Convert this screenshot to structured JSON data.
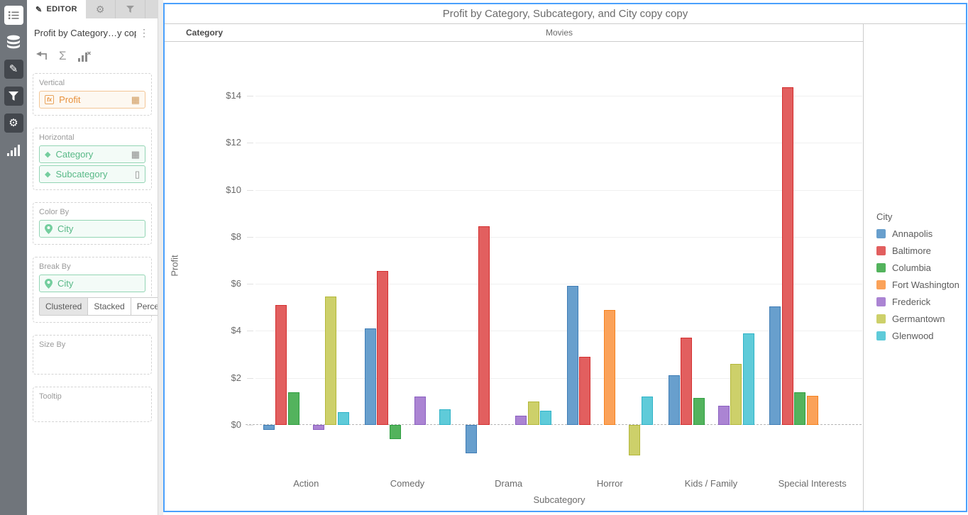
{
  "sidebar": {
    "items": [
      "widget-list",
      "data-sources",
      "edit",
      "filters",
      "settings",
      "chart-types"
    ]
  },
  "editor": {
    "tabs": {
      "editor_label": "EDITOR"
    },
    "title": "Profit by Category…y copy",
    "sections": {
      "vertical": {
        "label": "Vertical",
        "field": "Profit"
      },
      "horizontal": {
        "label": "Horizontal",
        "fields": [
          "Category",
          "Subcategory"
        ]
      },
      "color_by": {
        "label": "Color By",
        "field": "City"
      },
      "break_by": {
        "label": "Break By",
        "field": "City",
        "modes": [
          "Clustered",
          "Stacked",
          "Percent"
        ],
        "active_mode": "Clustered"
      },
      "size_by": {
        "label": "Size By"
      },
      "tooltip": {
        "label": "Tooltip"
      }
    }
  },
  "chart": {
    "title": "Profit by Category, Subcategory, and City copy copy",
    "category_header": {
      "label": "Category",
      "value": "Movies"
    }
  },
  "chart_data": {
    "type": "bar",
    "variant": "clustered",
    "title": "Profit by Category, Subcategory, and City copy copy",
    "xlabel": "Subcategory",
    "ylabel": "Profit",
    "legend_title": "City",
    "legend_position": "right",
    "grid": true,
    "zero_line": "dashed",
    "ylim": [
      -2,
      16
    ],
    "y_axis": {
      "ticks": [
        {
          "value": 0,
          "label": "$0"
        },
        {
          "value": 2,
          "label": "$2"
        },
        {
          "value": 4,
          "label": "$4"
        },
        {
          "value": 6,
          "label": "$6"
        },
        {
          "value": 8,
          "label": "$8"
        },
        {
          "value": 10,
          "label": "$10"
        },
        {
          "value": 12,
          "label": "$12"
        },
        {
          "value": 14,
          "label": "$14"
        }
      ]
    },
    "categories": [
      "Action",
      "Comedy",
      "Drama",
      "Horror",
      "Kids / Family",
      "Special Interests"
    ],
    "series": [
      {
        "name": "Annapolis",
        "color": "#689fcd",
        "border": "#3f7cb5",
        "values": [
          -0.2,
          4.1,
          -1.2,
          5.9,
          2.1,
          5.05
        ]
      },
      {
        "name": "Baltimore",
        "color": "#e25f5f",
        "border": "#d32f2f",
        "values": [
          5.1,
          6.55,
          8.45,
          2.9,
          3.7,
          14.35
        ]
      },
      {
        "name": "Columbia",
        "color": "#53b35d",
        "border": "#2f9e41",
        "values": [
          1.4,
          -0.6,
          0,
          0,
          1.15,
          1.4
        ]
      },
      {
        "name": "Fort Washington",
        "color": "#fba259",
        "border": "#f5821f",
        "values": [
          0,
          0,
          0,
          4.9,
          0,
          1.25
        ]
      },
      {
        "name": "Frederick",
        "color": "#ab84d3",
        "border": "#8a5fc0",
        "values": [
          -0.2,
          1.2,
          0.4,
          0,
          0.8,
          0
        ]
      },
      {
        "name": "Germantown",
        "color": "#cdd06a",
        "border": "#b3b73a",
        "values": [
          5.45,
          0,
          1.0,
          -1.3,
          2.6,
          0
        ]
      },
      {
        "name": "Glenwood",
        "color": "#5fcbd9",
        "border": "#2fb3c7",
        "values": [
          0.55,
          0.65,
          0.6,
          1.2,
          3.9,
          0
        ]
      }
    ]
  }
}
